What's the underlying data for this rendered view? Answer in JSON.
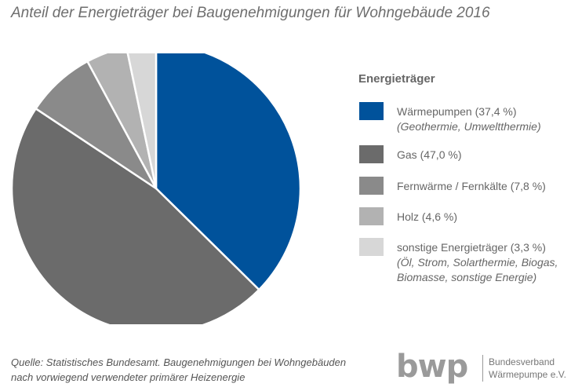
{
  "title": "Anteil der Energieträger bei Baugenehmigungen für Wohngebäude 2016",
  "chart_data": {
    "type": "pie",
    "title": "Anteil der Energieträger bei Baugenehmigungen für Wohngebäude 2016",
    "unit": "%",
    "legend_title": "Energieträger",
    "legend_position": "right",
    "start_angle_deg": 0,
    "direction": "clockwise",
    "slices": [
      {
        "label": "Wärmepumpen (37,4 %)",
        "sublabel": "(Geothermie, Umweltthermie)",
        "value": 37.4,
        "color": "#00529b"
      },
      {
        "label": "Gas (47,0 %)",
        "sublabel": "",
        "value": 47.0,
        "color": "#6b6b6b"
      },
      {
        "label": "Fernwärme / Fernkälte (7,8 %)",
        "sublabel": "",
        "value": 7.8,
        "color": "#8a8a8a"
      },
      {
        "label": "Holz (4,6 %)",
        "sublabel": "",
        "value": 4.6,
        "color": "#b2b2b2"
      },
      {
        "label": "sonstige Energieträger (3,3 %)",
        "sublabel": "(Öl, Strom, Solarthermie, Biogas, Biomasse, sonstige Energie)",
        "value": 3.3,
        "color": "#d7d7d7"
      }
    ]
  },
  "legend": {
    "title": "Energieträger",
    "items": [
      {
        "label": "Wärmepumpen (37,4 %)",
        "sub": [
          "(Geothermie, Umweltthermie)"
        ]
      },
      {
        "label": "Gas (47,0 %)",
        "sub": []
      },
      {
        "label": "Fernwärme / Fernkälte (7,8 %)",
        "sub": []
      },
      {
        "label": "Holz (4,6 %)",
        "sub": []
      },
      {
        "label": "sonstige Energieträger (3,3 %)",
        "sub": [
          "(Öl, Strom, Solarthermie, Biogas,",
          "Biomasse, sonstige Energie)"
        ]
      }
    ]
  },
  "source": {
    "line1": "Quelle: Statistisches Bundesamt. Baugenehmigungen bei Wohngebäuden",
    "line2": "nach vorwiegend verwendeter primärer Heizenergie"
  },
  "logo": {
    "mark": "bwp",
    "org_line1": "Bundesverband",
    "org_line2": "Wärmepumpe e.V."
  }
}
